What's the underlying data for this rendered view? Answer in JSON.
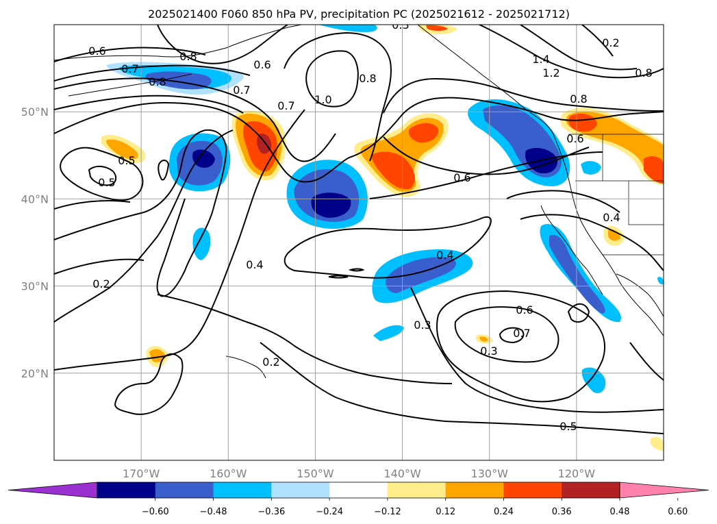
{
  "title": "2025021400 F060 850 hPa PV, precipitation PC (2025021612 - 2025021712)",
  "map": {
    "projection": "PlateCarree",
    "lon_range": [
      -180,
      -110
    ],
    "lat_range": [
      10,
      60
    ],
    "lon_ticks": [
      -170,
      -160,
      -150,
      -140,
      -130,
      -120
    ],
    "lat_ticks": [
      20,
      30,
      40,
      50
    ],
    "lon_tick_labels": [
      "170°W",
      "160°W",
      "150°W",
      "140°W",
      "130°W",
      "120°W"
    ],
    "lat_tick_labels": [
      "20°N",
      "30°N",
      "40°N",
      "50°N"
    ],
    "grid": true
  },
  "colorbar": {
    "extend": "both",
    "ticks": [
      "−0.60",
      "−0.48",
      "−0.36",
      "−0.24",
      "−0.12",
      "0.12",
      "0.24",
      "0.36",
      "0.48",
      "0.60"
    ],
    "colors": [
      "#9b30d0",
      "#00008b",
      "#3a5fcd",
      "#00bfff",
      "#b0e2ff",
      "#ffffff",
      "#ffec8b",
      "#ffa500",
      "#ff4500",
      "#b22222",
      "#ff82ab"
    ]
  },
  "pv_contour_labels": [
    "0.6",
    "0.7",
    "0.8",
    "0.8",
    "0.6",
    "0.7",
    "0.7",
    "1.0",
    "0.8",
    "1.4",
    "1.2",
    "0.8",
    "0.8",
    "0.6",
    "0.5",
    "0.5",
    "0.6",
    "0.4",
    "0.4",
    "0.4",
    "0.2",
    "0.2",
    "0.3",
    "0.6",
    "0.7",
    "0.3",
    "0.5",
    "0.2",
    "0.3"
  ],
  "precip_anomalies": [
    {
      "lon": -164,
      "lat": 45,
      "value": -0.55
    },
    {
      "lon": -148.5,
      "lat": 39.5,
      "value": -0.55
    },
    {
      "lon": -140,
      "lat": 32,
      "value": -0.4
    },
    {
      "lon": -125,
      "lat": 47,
      "value": -0.45
    },
    {
      "lon": -124,
      "lat": 44,
      "value": -0.55
    },
    {
      "lon": -120,
      "lat": 32,
      "value": -0.4
    },
    {
      "lon": -155.5,
      "lat": 46.5,
      "value": 0.48
    },
    {
      "lon": -141,
      "lat": 45,
      "value": 0.36
    },
    {
      "lon": -119,
      "lat": 48.5,
      "value": 0.3
    },
    {
      "lon": -166,
      "lat": 55,
      "value": -0.36
    }
  ]
}
